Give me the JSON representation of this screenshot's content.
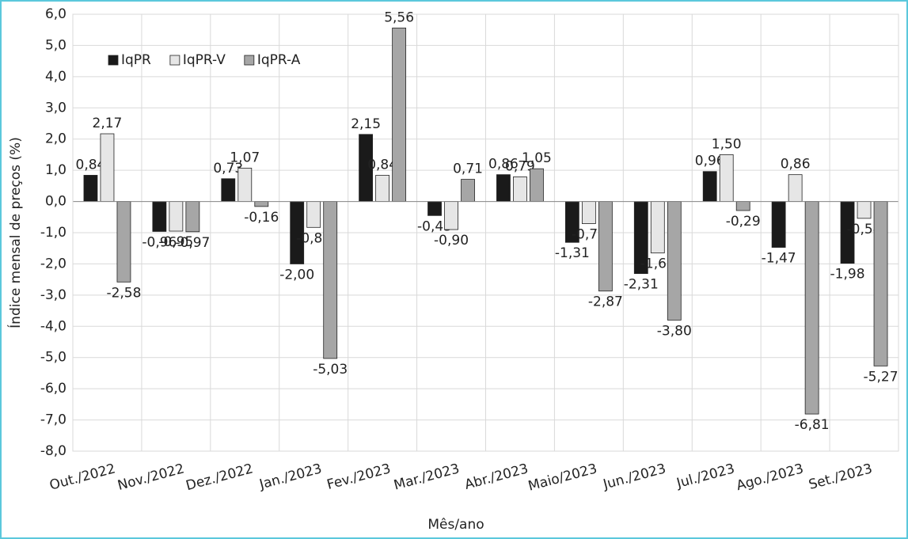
{
  "chart_data": {
    "type": "bar",
    "x_label": "Mês/ano",
    "y_label": "Índice mensal de preços (%)",
    "categories": [
      "Out./2022",
      "Nov./2022",
      "Dez./2022",
      "Jan./2023",
      "Fev./2023",
      "Mar./2023",
      "Abr./2023",
      "Maio/2023",
      "Jun./2023",
      "Jul./2023",
      "Ago./2023",
      "Set./2023"
    ],
    "series": [
      {
        "name": "IqPR",
        "color": "#1a1a1a",
        "values": [
          0.84,
          -0.96,
          0.73,
          -2.0,
          2.15,
          -0.45,
          0.86,
          -1.31,
          -2.31,
          0.96,
          -1.47,
          -1.98
        ],
        "value_labels": [
          "0,84",
          "-0,96",
          "0,73",
          "-2,00",
          "2,15",
          "-0,45",
          "0,86",
          "-1,31",
          "-2,31",
          "0,96",
          "-1,47",
          "-1,98"
        ]
      },
      {
        "name": "IqPR-V",
        "color": "#e6e6e6",
        "values": [
          2.17,
          -0.95,
          1.07,
          -0.83,
          0.84,
          -0.9,
          0.79,
          -0.71,
          -1.65,
          1.5,
          0.86,
          -0.54
        ],
        "value_labels": [
          "2,17",
          "-0,95",
          "1,07",
          "-0,83",
          "0,84",
          "-0,90",
          "0,79",
          "-0,71",
          "-1,65",
          "1,50",
          "0,86",
          "-0,54"
        ]
      },
      {
        "name": "IqPR-A",
        "color": "#a6a6a6",
        "values": [
          -2.58,
          -0.97,
          -0.16,
          -5.03,
          5.56,
          0.71,
          1.05,
          -2.87,
          -3.8,
          -0.29,
          -6.81,
          -5.27
        ],
        "value_labels": [
          "-2,58",
          "-0,97",
          "-0,16",
          "-5,03",
          "5,56",
          "0,71",
          "1,05",
          "-2,87",
          "-3,80",
          "-0,29",
          "-6,81",
          "-5,27"
        ]
      }
    ],
    "ylim": [
      -8,
      6
    ],
    "yticks": [
      {
        "value": -8,
        "label": "-8,0"
      },
      {
        "value": -7,
        "label": "-7,0"
      },
      {
        "value": -6,
        "label": "-6,0"
      },
      {
        "value": -5,
        "label": "-5,0"
      },
      {
        "value": -4,
        "label": "-4,0"
      },
      {
        "value": -3,
        "label": "-3,0"
      },
      {
        "value": -2,
        "label": "-2,0"
      },
      {
        "value": -1,
        "label": "-1,0"
      },
      {
        "value": 0,
        "label": "0,0"
      },
      {
        "value": 1,
        "label": "1,0"
      },
      {
        "value": 2,
        "label": "2,0"
      },
      {
        "value": 3,
        "label": "3,0"
      },
      {
        "value": 4,
        "label": "4,0"
      },
      {
        "value": 5,
        "label": "5,0"
      },
      {
        "value": 6,
        "label": "6,0"
      }
    ],
    "grid": true,
    "legend": "upper-left"
  }
}
